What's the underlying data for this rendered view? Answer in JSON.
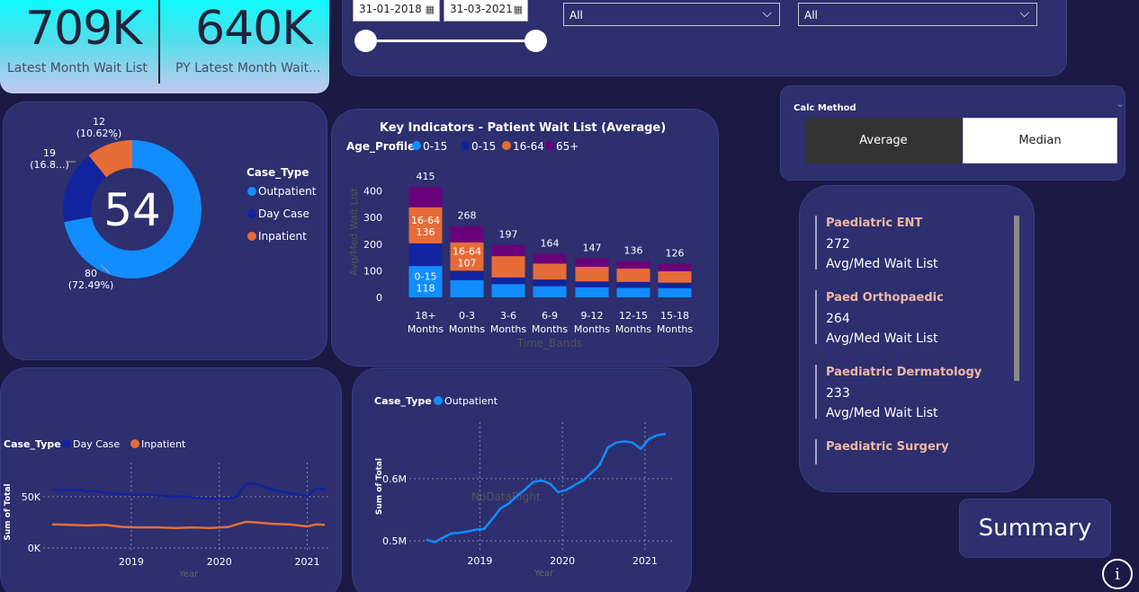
{
  "kpi": {
    "latest_value": "709K",
    "latest_label": "Latest Month Wait List",
    "py_value": "640K",
    "py_label": "PY Latest Month Wait..."
  },
  "filters": {
    "date_start": "31-01-2018",
    "date_end": "31-03-2021",
    "dropdown1": "All",
    "dropdown2": "All"
  },
  "calc_method": {
    "title": "Calc Method",
    "options": [
      "Average",
      "Median"
    ],
    "selected": "Average"
  },
  "specialty_list": [
    {
      "title": "Paediatric ENT",
      "value": "272",
      "label": "Avg/Med Wait List"
    },
    {
      "title": "Paed Orthopaedic",
      "value": "264",
      "label": "Avg/Med Wait List"
    },
    {
      "title": "Paediatric Dermatology",
      "value": "233",
      "label": "Avg/Med Wait List"
    },
    {
      "title": "Paediatric Surgery"
    }
  ],
  "summary_button": "Summary",
  "info_icon": "info-icon",
  "chart_data": [
    {
      "type": "pie",
      "variant": "donut",
      "center_label": "54",
      "legend_title": "Case_Type",
      "slices": [
        {
          "name": "Outpatient",
          "value": 80,
          "label": "80",
          "pct_label": "(72.49%)",
          "color": "#118dff"
        },
        {
          "name": "Day Case",
          "value": 19,
          "label": "19",
          "pct_label": "(16.8...)",
          "color": "#12239e"
        },
        {
          "name": "Inpatient",
          "value": 12,
          "label": "12",
          "pct_label": "(10.62%)",
          "color": "#e66c37"
        }
      ]
    },
    {
      "type": "bar",
      "stacked": true,
      "title": "Key Indicators - Patient Wait List (Average)",
      "legend_title": "Age_Profile",
      "xlabel": "Time_Bands",
      "ylabel": "Avg/Med Wait List",
      "ylim": [
        0,
        450
      ],
      "yticks": [
        0,
        100,
        200,
        300,
        400
      ],
      "categories": [
        [
          "18+",
          "Months"
        ],
        [
          "0-3",
          "Months"
        ],
        [
          "3-6",
          "Months"
        ],
        [
          "6-9",
          "Months"
        ],
        [
          "9-12",
          "Months"
        ],
        [
          "12-15",
          "Months"
        ],
        [
          "15-18",
          "Months"
        ]
      ],
      "totals": [
        415,
        268,
        197,
        164,
        147,
        136,
        126
      ],
      "series": [
        {
          "name": "0-15",
          "color": "#118dff",
          "values": [
            118,
            65,
            50,
            42,
            38,
            36,
            35
          ]
        },
        {
          "name": "0-15",
          "color": "#12239e",
          "values": [
            85,
            35,
            25,
            25,
            22,
            22,
            20
          ]
        },
        {
          "name": "16-64",
          "color": "#e66c37",
          "values": [
            136,
            107,
            80,
            60,
            55,
            50,
            43
          ]
        },
        {
          "name": "65+",
          "color": "#6b007b",
          "values": [
            76,
            61,
            42,
            37,
            32,
            28,
            28
          ]
        }
      ],
      "segment_labels": [
        {
          "bar": 0,
          "series": 0,
          "text": [
            "0-15",
            "118"
          ]
        },
        {
          "bar": 0,
          "series": 2,
          "text": [
            "16-64",
            "136"
          ]
        },
        {
          "bar": 1,
          "series": 2,
          "text": [
            "16-64",
            "107"
          ]
        }
      ]
    },
    {
      "type": "line",
      "legend_title": "Case_Type",
      "ylabel": "Sum of Total",
      "xlabel": "Year",
      "xticks": [
        "2019",
        "2020",
        "2021"
      ],
      "yticks": [
        "0K",
        "50K"
      ],
      "ylim": [
        0,
        70000
      ],
      "xlim": [
        2018.05,
        2021.25
      ],
      "series": [
        {
          "name": "Day Case",
          "color": "#12239e",
          "x": [
            2018.1,
            2018.2,
            2018.3,
            2018.4,
            2018.5,
            2018.6,
            2018.7,
            2018.8,
            2018.9,
            2019.0,
            2019.1,
            2019.2,
            2019.3,
            2019.4,
            2019.5,
            2019.6,
            2019.7,
            2019.8,
            2019.9,
            2020.0,
            2020.1,
            2020.2,
            2020.3,
            2020.4,
            2020.5,
            2020.6,
            2020.7,
            2020.8,
            2020.9,
            2021.0,
            2021.1,
            2021.2
          ],
          "y": [
            57000,
            56000,
            57000,
            56500,
            55000,
            55500,
            54000,
            53000,
            52500,
            52000,
            51500,
            52000,
            51000,
            50500,
            50000,
            50500,
            49000,
            48500,
            48000,
            48500,
            48000,
            50000,
            62000,
            63000,
            60000,
            57000,
            55000,
            53500,
            52000,
            50500,
            58000,
            57000
          ]
        },
        {
          "name": "Inpatient",
          "color": "#e66c37",
          "x": [
            2018.1,
            2018.3,
            2018.5,
            2018.7,
            2018.9,
            2019.1,
            2019.3,
            2019.5,
            2019.7,
            2019.9,
            2020.1,
            2020.3,
            2020.4,
            2020.6,
            2020.8,
            2021.0,
            2021.1,
            2021.2
          ],
          "y": [
            23000,
            22500,
            22000,
            22500,
            20500,
            20000,
            20000,
            19500,
            20000,
            19500,
            20500,
            25500,
            25000,
            23500,
            23000,
            21000,
            23000,
            22500
          ]
        }
      ]
    },
    {
      "type": "line",
      "legend_title": "Case_Type",
      "ylabel": "Sum of Total",
      "xlabel": "Year",
      "xticks": [
        "2019",
        "2020",
        "2021"
      ],
      "yticks": [
        "0.5M",
        "0.6M"
      ],
      "ylim": [
        0.49,
        0.685
      ],
      "xlim": [
        2018.2,
        2021.35
      ],
      "annotation": "NoDataRight",
      "series": [
        {
          "name": "Outpatient",
          "color": "#118dff",
          "x": [
            2018.35,
            2018.45,
            2018.55,
            2018.65,
            2018.75,
            2018.85,
            2018.95,
            2019.05,
            2019.15,
            2019.25,
            2019.35,
            2019.45,
            2019.55,
            2019.65,
            2019.75,
            2019.85,
            2019.95,
            2020.05,
            2020.15,
            2020.25,
            2020.35,
            2020.45,
            2020.55,
            2020.65,
            2020.75,
            2020.85,
            2020.95,
            2021.05,
            2021.15,
            2021.25
          ],
          "y": [
            0.502,
            0.498,
            0.505,
            0.512,
            0.513,
            0.515,
            0.518,
            0.519,
            0.535,
            0.552,
            0.56,
            0.572,
            0.583,
            0.595,
            0.597,
            0.592,
            0.578,
            0.582,
            0.59,
            0.597,
            0.609,
            0.622,
            0.65,
            0.658,
            0.66,
            0.658,
            0.648,
            0.664,
            0.67,
            0.672
          ]
        }
      ]
    }
  ]
}
